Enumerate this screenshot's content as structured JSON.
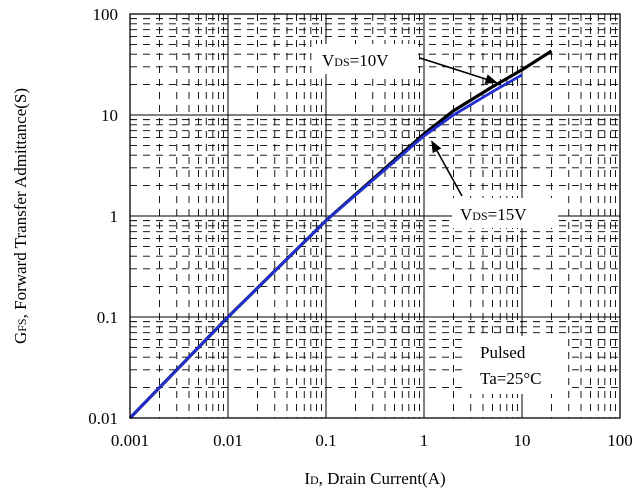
{
  "chart_data": {
    "type": "line",
    "x_scale": "log",
    "y_scale": "log",
    "xlim": [
      0.001,
      100
    ],
    "ylim": [
      0.01,
      100
    ],
    "grid": true,
    "xlabel": {
      "main": "I",
      "sub": "D",
      "rest": ", Drain Current(A)"
    },
    "ylabel": {
      "main": "G",
      "sub": "FS",
      "rest": ", Forward Transfer Admittance(S)"
    },
    "x_ticks": [
      {
        "value": 0.001,
        "label": "0.001"
      },
      {
        "value": 0.01,
        "label": "0.01"
      },
      {
        "value": 0.1,
        "label": "0.1"
      },
      {
        "value": 1,
        "label": "1"
      },
      {
        "value": 10,
        "label": "10"
      },
      {
        "value": 100,
        "label": "100"
      }
    ],
    "y_ticks": [
      {
        "value": 0.01,
        "label": "0.01"
      },
      {
        "value": 0.1,
        "label": "0.1"
      },
      {
        "value": 1,
        "label": "1"
      },
      {
        "value": 10,
        "label": "10"
      },
      {
        "value": 100,
        "label": "100"
      }
    ],
    "series": [
      {
        "name": "VDS=10V",
        "color": "#000000",
        "x": [
          0.001,
          0.01,
          0.1,
          1,
          2,
          5,
          10,
          20
        ],
        "y": [
          0.01,
          0.1,
          0.9,
          6.5,
          11,
          19,
          28,
          43
        ]
      },
      {
        "name": "VDS=15V",
        "color": "#1f2fd0",
        "x": [
          0.001,
          0.01,
          0.1,
          1,
          2,
          5,
          10
        ],
        "y": [
          0.01,
          0.1,
          0.9,
          6.2,
          10,
          17,
          25
        ]
      }
    ],
    "annotations": [
      {
        "id": "vds10",
        "main": "V",
        "sub": "DS",
        "rest": "=10V",
        "arrow_to": {
          "x": 5.5,
          "y": 21
        }
      },
      {
        "id": "vds15",
        "main": "V",
        "sub": "DS",
        "rest": "=15V",
        "arrow_to": {
          "x": 1.2,
          "y": 5.5
        }
      },
      {
        "id": "pulsed",
        "lines": [
          "Pulsed",
          "Ta=25°C"
        ]
      }
    ]
  }
}
